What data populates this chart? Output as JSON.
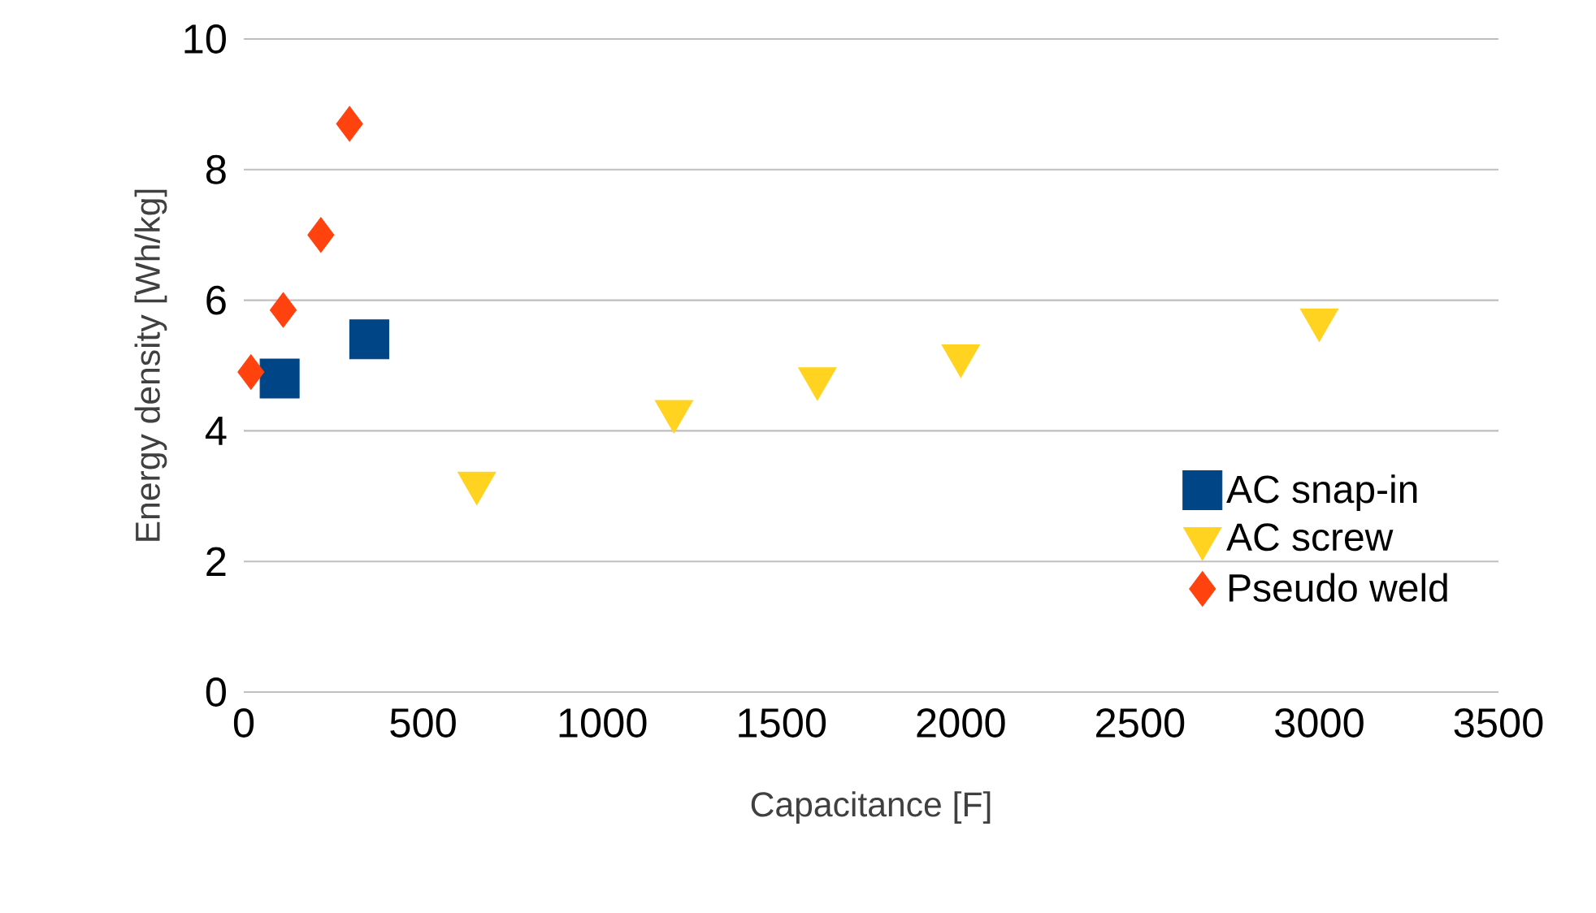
{
  "chart_data": {
    "type": "scatter",
    "xlabel": "Capacitance [F]",
    "ylabel": "Energy density [Wh/kg]",
    "xlim": [
      0,
      3500
    ],
    "xticks": [
      0,
      500,
      1000,
      1500,
      2000,
      2500,
      3000,
      3500
    ],
    "ylim": [
      0,
      10
    ],
    "yticks": [
      0,
      2,
      4,
      6,
      8,
      10
    ],
    "grid": "y",
    "legend": "bottom right",
    "series": [
      {
        "name": "AC snap-in",
        "color": "#004586",
        "marker": "square",
        "x": [
          100,
          350
        ],
        "values": [
          4.8,
          5.4
        ]
      },
      {
        "name": "AC screw",
        "color": "#ffd320",
        "marker": "triangle",
        "x": [
          650,
          1200,
          1600,
          2000,
          3000
        ],
        "values": [
          3.2,
          4.3,
          4.8,
          5.15,
          5.7
        ]
      },
      {
        "name": "Pseudo weld",
        "color": "#ff420e",
        "marker": "diamond",
        "x": [
          20,
          110,
          215,
          295
        ],
        "values": [
          4.9,
          5.85,
          7.0,
          8.7
        ]
      }
    ]
  }
}
